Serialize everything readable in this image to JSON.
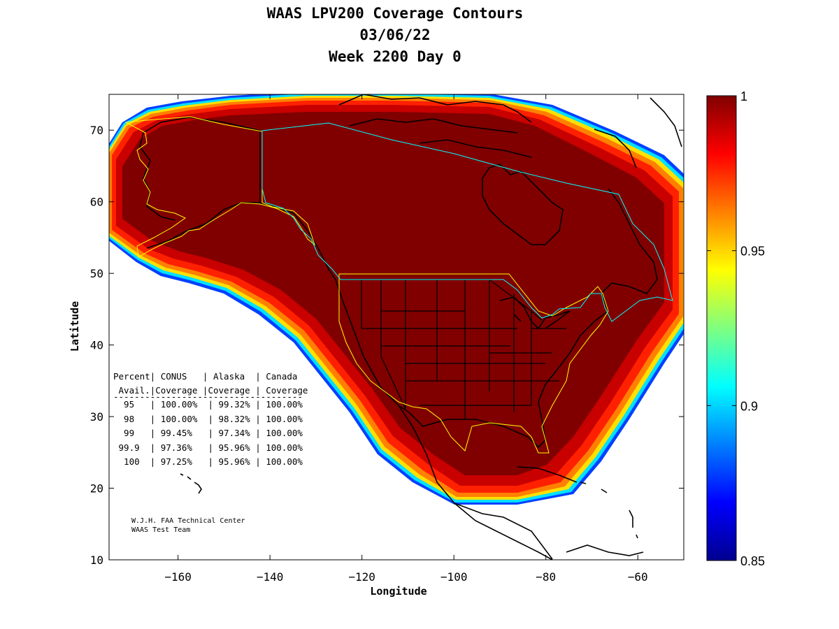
{
  "title_lines": [
    "WAAS LPV200 Coverage Contours",
    "03/06/22",
    "Week 2200 Day 0"
  ],
  "chart_data": {
    "type": "map",
    "xlabel": "Longitude",
    "ylabel": "Latitude",
    "xlim": [
      -175,
      -50
    ],
    "ylim": [
      10,
      75
    ],
    "x_ticks": [
      -160,
      -140,
      -120,
      -100,
      -80,
      -60
    ],
    "y_ticks": [
      10,
      20,
      30,
      40,
      50,
      60,
      70
    ],
    "colorbar": {
      "min": 0.85,
      "max": 1,
      "ticks": [
        {
          "value": 1,
          "label": "1"
        },
        {
          "value": 0.95,
          "label": "0.95"
        },
        {
          "value": 0.9,
          "label": "0.9"
        },
        {
          "value": 0.85,
          "label": "0.85"
        }
      ],
      "colormap": "jet"
    },
    "coverage_colors": {
      "full": "#800000",
      "high": "#c80000",
      "mid": "#ff2000",
      "orange": "#ff8000",
      "yellow": "#ffe000",
      "cyan": "#00e0ff",
      "blue": "#0040ff",
      "line_alaska": "#ffff00",
      "line_canada": "#00ffff"
    },
    "table": {
      "header_row1": "Percent| CONUS   | Alaska  | Canada",
      "header_row2": " Avail.|Coverage |Coverage | Coverage",
      "separator": "------------------------------------",
      "rows": [
        "  95   | 100.00%  | 99.32% | 100.00%",
        "  98   | 100.00%  | 98.32% | 100.00%",
        "  99   | 99.45%   | 97.34% | 100.00%",
        " 99.9  | 97.36%   | 95.96% | 100.00%",
        "  100  | 97.25%   | 95.96% | 100.00%"
      ]
    },
    "credits": [
      "W.J.H. FAA Technical Center",
      "WAAS Test Team"
    ]
  }
}
